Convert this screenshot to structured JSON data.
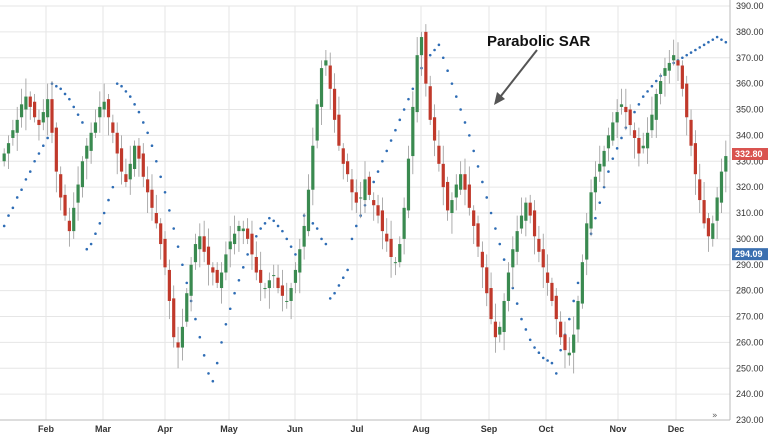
{
  "chart_data": {
    "type": "candlestick",
    "title": "",
    "annotation": "Parabolic SAR",
    "xlabel": "",
    "ylabel": "",
    "ylim": [
      230,
      390
    ],
    "y_ticks": [
      "230.00",
      "240.00",
      "250.00",
      "260.00",
      "270.00",
      "280.00",
      "290.00",
      "300.00",
      "310.00",
      "320.00",
      "330.00",
      "340.00",
      "350.00",
      "360.00",
      "370.00",
      "380.00",
      "390.00"
    ],
    "x_ticks": [
      "Feb",
      "Mar",
      "Apr",
      "May",
      "Jun",
      "Jul",
      "Aug",
      "Sep",
      "Oct",
      "Nov",
      "Dec"
    ],
    "price_tags": [
      {
        "label": "332.80",
        "value": 332.8,
        "color": "#d9534f"
      },
      {
        "label": "294.09",
        "value": 294.09,
        "color": "#3a6fb0"
      }
    ],
    "grid": true,
    "colors": {
      "up": "#3a8a50",
      "down": "#c0392b",
      "sar": "#2f6db5",
      "grid": "#e6e6e6"
    },
    "close_series": [
      333,
      337,
      342,
      346,
      352,
      355,
      351,
      347,
      344,
      349,
      354,
      341,
      326,
      316,
      309,
      303,
      312,
      321,
      330,
      336,
      341,
      345,
      351,
      353,
      347,
      341,
      333,
      326,
      322,
      329,
      336,
      331,
      324,
      318,
      312,
      306,
      298,
      289,
      276,
      262,
      258,
      266,
      279,
      290,
      298,
      301,
      295,
      290,
      287,
      283,
      287,
      294,
      299,
      302,
      305,
      304,
      300,
      294,
      287,
      283,
      281,
      284,
      286,
      281,
      278,
      276,
      281,
      288,
      296,
      305,
      319,
      336,
      352,
      366,
      369,
      358,
      346,
      336,
      329,
      325,
      318,
      314,
      316,
      323,
      317,
      313,
      309,
      303,
      299,
      293,
      291,
      298,
      312,
      331,
      351,
      371,
      378,
      360,
      346,
      338,
      329,
      320,
      311,
      315,
      321,
      325,
      319,
      312,
      305,
      297,
      289,
      279,
      269,
      262,
      266,
      276,
      287,
      296,
      303,
      309,
      314,
      309,
      301,
      295,
      289,
      283,
      276,
      269,
      262,
      257,
      256,
      263,
      276,
      291,
      306,
      318,
      324,
      329,
      334,
      340,
      345,
      349,
      352,
      349,
      344,
      339,
      333,
      336,
      341,
      348,
      356,
      361,
      366,
      368,
      371,
      367,
      358,
      347,
      336,
      325,
      315,
      306,
      301,
      306,
      316,
      326,
      332
    ],
    "sar_series": [
      305,
      309,
      312,
      316,
      319,
      323,
      326,
      330,
      333,
      336,
      339,
      360,
      359,
      358,
      356,
      354,
      351,
      348,
      345,
      296,
      298,
      302,
      306,
      310,
      315,
      320,
      360,
      359,
      357,
      355,
      352,
      349,
      345,
      341,
      336,
      330,
      324,
      318,
      311,
      304,
      297,
      290,
      283,
      276,
      269,
      262,
      255,
      248,
      245,
      252,
      260,
      267,
      273,
      279,
      284,
      289,
      294,
      298,
      301,
      304,
      306,
      308,
      307,
      305,
      303,
      300,
      297,
      294,
      291,
      309,
      308,
      306,
      304,
      300,
      298,
      277,
      279,
      282,
      285,
      288,
      300,
      305,
      309,
      313,
      318,
      322,
      326,
      330,
      334,
      338,
      342,
      346,
      350,
      354,
      358,
      362,
      366,
      369,
      371,
      373,
      375,
      370,
      365,
      360,
      355,
      350,
      345,
      340,
      334,
      328,
      322,
      316,
      310,
      304,
      298,
      292,
      286,
      281,
      275,
      269,
      265,
      261,
      258,
      256,
      254,
      253,
      252,
      248,
      257,
      263,
      269,
      276,
      283,
      290,
      296,
      302,
      308,
      314,
      320,
      326,
      331,
      335,
      339,
      343,
      346,
      349,
      352,
      355,
      357,
      359,
      361,
      363,
      365,
      367,
      368,
      369,
      370,
      371,
      372,
      373,
      374,
      375,
      376,
      377,
      378,
      377,
      376
    ]
  }
}
